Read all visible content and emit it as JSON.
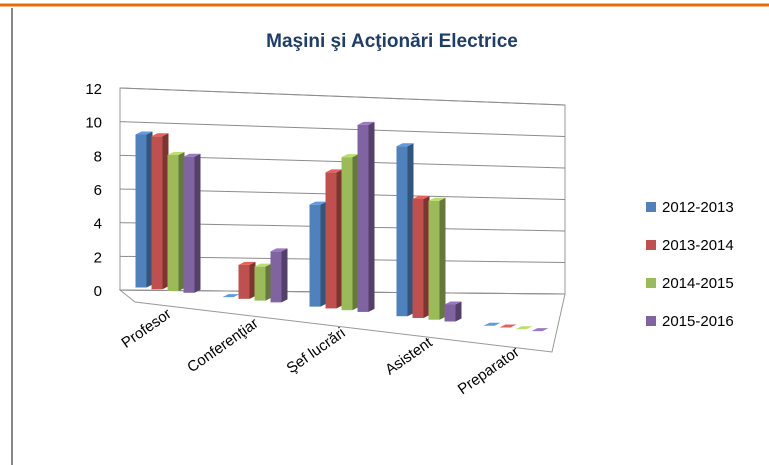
{
  "chart_data": {
    "type": "bar3d",
    "title": "Maşini şi Acţionări Electrice",
    "categories": [
      "Profesor",
      "Conferenţiar",
      "Şef lucrări",
      "Asistent",
      "Preparator"
    ],
    "series": [
      {
        "name": "2012-2013",
        "color": "#4f81bd",
        "values": [
          9,
          0,
          6,
          10,
          0
        ]
      },
      {
        "name": "2013-2014",
        "color": "#c0504d",
        "values": [
          9,
          2,
          8,
          7,
          0
        ]
      },
      {
        "name": "2014-2015",
        "color": "#9bbb59",
        "values": [
          8,
          2,
          9,
          7,
          0
        ]
      },
      {
        "name": "2015-2016",
        "color": "#8064a2",
        "values": [
          8,
          3,
          11,
          1,
          0
        ]
      }
    ],
    "ylim": [
      0,
      12
    ],
    "yticks": [
      0,
      2,
      4,
      6,
      8,
      10,
      12
    ],
    "grid": true,
    "legend": "right"
  }
}
